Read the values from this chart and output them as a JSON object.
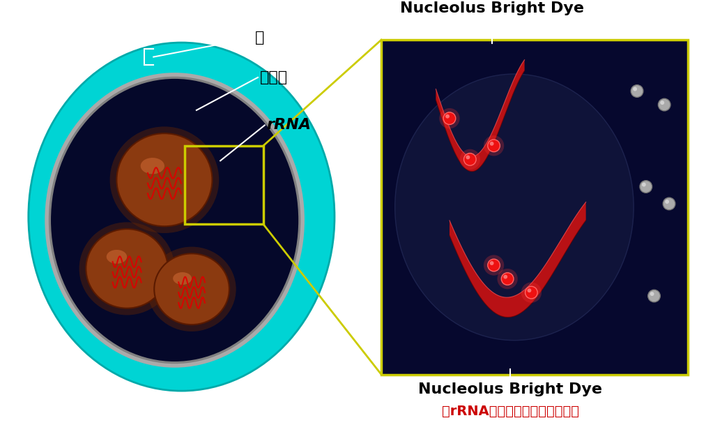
{
  "label_nucleus": "核",
  "label_nucleolus": "核小体",
  "label_rRNA": "rRNA",
  "label_nbd_top": "Nucleolus Bright Dye",
  "label_nbd_bottom": "Nucleolus Bright Dye",
  "label_rRNA_bind": "（rRNAに結合し蛍光を発する）",
  "bg_color": "#ffffff",
  "zoom_box_color": "#cccc00",
  "rRNA_bind_color": "#cc0000",
  "cell_outer_color": "#00d4d4",
  "cell_inner_color": "#05082a",
  "nucleolus_color": "#8B3A10",
  "rRNA_color": "#dd0000",
  "zoom_panel_bg": "#06082e",
  "annotation_line_color": "#ffffff",
  "nbd_text_color": "#000000",
  "free_dye_color": "#aaaaaa",
  "bound_dye_color": "#ee1111"
}
